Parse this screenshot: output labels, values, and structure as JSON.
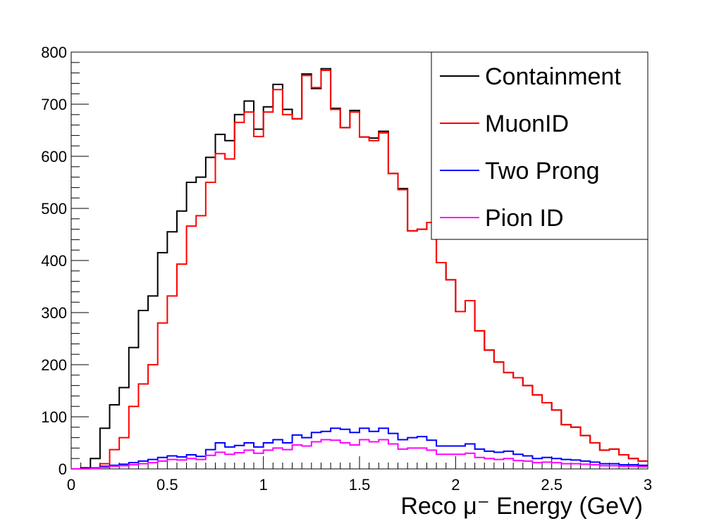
{
  "chart_data": {
    "type": "line",
    "title": "",
    "xlabel": "Reco μ⁻ Energy (GeV)",
    "ylabel": "",
    "xlim": [
      0,
      3
    ],
    "ylim": [
      0,
      800
    ],
    "grid": false,
    "legend_position": "top-right",
    "xticks": [
      "0",
      "0.5",
      "1",
      "1.5",
      "2",
      "2.5",
      "3"
    ],
    "xtick_values": [
      0,
      0.5,
      1,
      1.5,
      2,
      2.5,
      3
    ],
    "yticks": [
      "0",
      "100",
      "200",
      "300",
      "400",
      "500",
      "600",
      "700",
      "800"
    ],
    "ytick_values": [
      0,
      100,
      200,
      300,
      400,
      500,
      600,
      700,
      800
    ],
    "bin_edges_start": 0,
    "bin_width": 0.05,
    "series": [
      {
        "name": "Containment",
        "color": "#000000",
        "values": [
          0,
          2,
          20,
          78,
          123,
          156,
          233,
          304,
          332,
          415,
          455,
          495,
          550,
          560,
          598,
          642,
          630,
          680,
          706,
          652,
          695,
          738,
          690,
          672,
          758,
          730,
          768,
          692,
          655,
          688,
          637,
          635,
          648,
          567,
          538,
          457,
          460,
          473,
          396,
          363,
          302,
          323,
          265,
          228,
          205,
          185,
          175,
          160,
          142,
          127,
          113,
          85,
          80,
          64,
          50,
          36,
          38,
          27,
          20,
          15,
          5,
          2,
          1,
          1,
          0,
          0,
          0,
          0,
          0,
          0,
          0,
          0,
          0,
          0,
          0,
          0,
          0,
          0,
          0,
          0,
          0,
          0,
          0,
          0,
          0,
          0,
          0,
          0,
          0,
          0,
          0,
          0,
          0,
          0,
          0,
          0,
          0,
          0,
          0,
          0,
          0,
          0,
          0,
          0,
          0,
          0,
          0,
          0,
          0,
          0,
          0,
          0,
          0,
          0,
          0,
          0,
          0,
          0,
          0,
          0,
          0,
          0,
          0,
          0,
          0,
          0,
          0,
          0,
          0,
          0,
          0,
          0,
          0,
          0,
          0,
          0,
          0,
          0,
          0,
          0,
          0,
          0,
          0,
          0,
          0,
          0,
          0,
          0,
          0,
          0,
          0,
          0,
          0,
          0,
          0,
          0,
          0,
          0,
          0,
          0,
          0,
          0,
          0,
          0,
          0,
          0,
          0,
          0,
          0,
          0,
          0,
          0,
          0,
          0,
          0,
          0,
          0,
          0,
          0,
          0,
          0,
          0,
          0,
          0,
          0,
          0,
          0,
          0,
          0,
          0,
          0,
          0,
          0,
          0,
          0,
          0,
          0,
          0,
          0,
          0,
          0,
          0,
          0,
          0,
          0,
          0,
          0,
          0,
          0,
          0,
          0,
          0,
          0,
          0,
          0,
          0,
          0,
          0,
          0,
          0,
          0,
          0,
          0,
          0,
          0,
          0,
          0,
          0,
          0,
          0,
          0,
          0,
          0,
          0,
          0,
          0,
          0,
          0,
          0,
          0,
          0,
          0,
          0,
          0,
          0,
          0,
          0,
          0,
          0,
          0,
          0,
          0,
          0,
          0,
          0,
          0,
          0,
          0,
          0,
          0,
          0,
          0,
          0,
          0,
          0,
          0,
          0,
          0,
          0,
          0,
          0,
          0,
          0,
          0,
          0,
          0,
          0,
          0,
          0,
          0,
          0,
          0,
          0,
          0,
          0,
          0,
          0,
          0,
          0,
          0,
          0,
          0,
          0,
          0,
          0,
          0,
          0,
          0,
          0,
          0,
          0,
          0,
          0,
          0,
          0,
          0,
          0,
          0,
          0,
          0,
          0,
          0,
          0,
          0,
          0,
          0,
          0,
          0,
          0,
          0
        ]
      },
      {
        "name": "MuonID",
        "color": "#ff0000",
        "values": [
          0,
          0,
          2,
          10,
          37,
          60,
          120,
          163,
          200,
          280,
          332,
          393,
          466,
          486,
          550,
          605,
          595,
          665,
          685,
          638,
          685,
          728,
          680,
          672,
          755,
          732,
          765,
          690,
          655,
          685,
          637,
          630,
          645,
          567,
          536,
          457,
          460,
          473,
          396,
          363,
          302,
          323,
          265,
          228,
          205,
          185,
          175,
          160,
          142,
          127,
          113,
          85,
          80,
          64,
          50,
          36,
          38,
          27,
          20,
          15,
          5,
          2,
          1,
          1,
          0,
          0,
          0,
          0,
          0,
          0,
          0,
          0,
          0,
          0,
          0,
          0,
          0,
          0,
          0,
          0,
          0,
          0,
          0,
          0,
          0,
          0,
          0,
          0,
          0,
          0,
          0,
          0,
          0,
          0,
          0,
          0,
          0,
          0,
          0,
          0,
          0,
          0,
          0,
          0,
          0,
          0,
          0,
          0,
          0,
          0,
          0,
          0,
          0,
          0,
          0,
          0,
          0,
          0,
          0,
          0,
          0,
          0,
          0,
          0,
          0,
          0,
          0,
          0,
          0,
          0,
          0,
          0,
          0,
          0,
          0,
          0,
          0,
          0,
          0,
          0,
          0,
          0,
          0,
          0,
          0,
          0,
          0,
          0,
          0,
          0,
          0,
          0,
          0,
          0,
          0,
          0,
          0,
          0,
          0,
          0,
          0,
          0,
          0,
          0,
          0,
          0,
          0,
          0,
          0,
          0,
          0,
          0,
          0,
          0,
          0,
          0,
          0,
          0,
          0,
          0,
          0,
          0,
          0,
          0,
          0,
          0,
          0,
          0,
          0,
          0,
          0,
          0,
          0,
          0,
          0,
          0,
          0,
          0,
          0,
          0,
          0,
          0,
          0,
          0,
          0,
          0,
          0,
          0,
          0,
          0,
          0,
          0,
          0,
          0,
          0,
          0,
          0,
          0,
          0,
          0,
          0,
          0,
          0,
          0,
          0,
          0,
          0,
          0,
          0,
          0,
          0,
          0,
          0,
          0,
          0,
          0,
          0,
          0,
          0,
          0,
          0,
          0,
          0,
          0,
          0,
          0,
          0,
          0,
          0,
          0,
          0,
          0,
          0,
          0,
          0,
          0,
          0,
          0,
          0,
          0,
          0,
          0,
          0,
          0,
          0,
          0,
          0,
          0,
          0,
          0,
          0,
          0,
          0,
          0,
          0,
          0,
          0,
          0,
          0,
          0,
          0,
          0,
          0,
          0,
          0,
          0,
          0,
          0,
          0,
          0,
          0,
          0,
          0,
          0,
          0,
          0,
          0,
          0,
          0,
          0,
          0,
          0,
          0,
          0,
          0,
          0,
          0,
          0,
          0,
          0
        ]
      },
      {
        "name": "Two Prong",
        "color": "#0000ff",
        "values": [
          0,
          0,
          2,
          5,
          7,
          9,
          12,
          15,
          18,
          22,
          25,
          23,
          27,
          24,
          37,
          50,
          42,
          45,
          50,
          42,
          50,
          56,
          50,
          65,
          60,
          70,
          72,
          78,
          76,
          70,
          78,
          72,
          78,
          68,
          56,
          60,
          62,
          55,
          44,
          44,
          44,
          48,
          38,
          34,
          32,
          34,
          28,
          25,
          20,
          22,
          20,
          18,
          17,
          15,
          13,
          10,
          10,
          8,
          8,
          7,
          5,
          5,
          3,
          3,
          2,
          2,
          1,
          1,
          1,
          0,
          0,
          0,
          0,
          0,
          0,
          0,
          0,
          0,
          0,
          0,
          0,
          0,
          0,
          0,
          0,
          0,
          0,
          0,
          0,
          0,
          0,
          0,
          0,
          0,
          0,
          0,
          0,
          0,
          0,
          0,
          0,
          0,
          0,
          0,
          0,
          0,
          0,
          0,
          0,
          0,
          0,
          0,
          0,
          0,
          0,
          0,
          0,
          0,
          0,
          0,
          0,
          0,
          0,
          0,
          0,
          0,
          0,
          0,
          0,
          0,
          0,
          0,
          0,
          0,
          0,
          0,
          0,
          0,
          0,
          0,
          0,
          0,
          0,
          0,
          0,
          0,
          0,
          0,
          0,
          0,
          0,
          0,
          0,
          0,
          0,
          0,
          0,
          0,
          0,
          0,
          0,
          0,
          0,
          0,
          0,
          0,
          0,
          0,
          0,
          0,
          0,
          0,
          0,
          0,
          0,
          0,
          0,
          0,
          0,
          0,
          0,
          0,
          0,
          0,
          0,
          0,
          0,
          0,
          0,
          0,
          0,
          0,
          0,
          0,
          0,
          0,
          0,
          0,
          0,
          0,
          0,
          0,
          0,
          0,
          0,
          0,
          0,
          0,
          0,
          0,
          0,
          0,
          0,
          0,
          0,
          0,
          0,
          0,
          0,
          0,
          0,
          0,
          0,
          0,
          0,
          0,
          0,
          0,
          0,
          0,
          0,
          0,
          0,
          0,
          0,
          0,
          0,
          0,
          0,
          0,
          0,
          0,
          0,
          0,
          0,
          0,
          0,
          0,
          0,
          0,
          0,
          0,
          0,
          0,
          0,
          0,
          0,
          0,
          0,
          0,
          0,
          0,
          0,
          0,
          0,
          0,
          0,
          0,
          0,
          0,
          0,
          0,
          0,
          0,
          0,
          0,
          0,
          0,
          0,
          0,
          0,
          0,
          0,
          0,
          0,
          0,
          0,
          0,
          0,
          0,
          0,
          0,
          0,
          0,
          0,
          0,
          0,
          0,
          0,
          0,
          0,
          0,
          0,
          0,
          0,
          0,
          0,
          0,
          0,
          0,
          0,
          0,
          0,
          0,
          0
        ]
      },
      {
        "name": "Pion ID",
        "color": "#ff00ff",
        "values": [
          0,
          0,
          1,
          3,
          5,
          6,
          8,
          10,
          12,
          15,
          18,
          17,
          20,
          18,
          26,
          32,
          28,
          31,
          36,
          30,
          36,
          40,
          37,
          46,
          44,
          52,
          56,
          55,
          50,
          46,
          56,
          52,
          56,
          48,
          38,
          40,
          40,
          36,
          28,
          28,
          28,
          30,
          22,
          20,
          18,
          20,
          16,
          15,
          12,
          13,
          12,
          10,
          10,
          9,
          8,
          6,
          6,
          5,
          5,
          4,
          3,
          3,
          2,
          2,
          1,
          1,
          1,
          1,
          1,
          0,
          0,
          0,
          0,
          0,
          0,
          0,
          0,
          0,
          0,
          0,
          0,
          0,
          0,
          0,
          0,
          0,
          0,
          0,
          0,
          0,
          0,
          0,
          0,
          0,
          0,
          0,
          0,
          0,
          0,
          0,
          0,
          0,
          0,
          0,
          0,
          0,
          0,
          0,
          0,
          0,
          0,
          0,
          0,
          0,
          0,
          0,
          0,
          0,
          0,
          0,
          0,
          0,
          0,
          0,
          0,
          0,
          0,
          0,
          0,
          0,
          0,
          0,
          0,
          0,
          0,
          0,
          0,
          0,
          0,
          0,
          0,
          0,
          0,
          0,
          0,
          0,
          0,
          0,
          0,
          0,
          0,
          0,
          0,
          0,
          0,
          0,
          0,
          0,
          0,
          0,
          0,
          0,
          0,
          0,
          0,
          0,
          0,
          0,
          0,
          0,
          0,
          0,
          0,
          0,
          0,
          0,
          0,
          0,
          0,
          0,
          0,
          0,
          0,
          0,
          0,
          0,
          0,
          0,
          0,
          0,
          0,
          0,
          0,
          0,
          0,
          0,
          0,
          0,
          0,
          0,
          0,
          0,
          0,
          0,
          0,
          0,
          0,
          0,
          0,
          0,
          0,
          0,
          0,
          0,
          0,
          0,
          0,
          0,
          0,
          0,
          0,
          0,
          0,
          0,
          0,
          0,
          0,
          0,
          0,
          0,
          0,
          0,
          0,
          0,
          0,
          0,
          0,
          0,
          0,
          0,
          0,
          0,
          0,
          0,
          0,
          0,
          0,
          0,
          0,
          0,
          0,
          0,
          0,
          0,
          0,
          0,
          0,
          0,
          0,
          0,
          0,
          0,
          0,
          0,
          0,
          0,
          0,
          0,
          0,
          0,
          0,
          0,
          0,
          0,
          0,
          0,
          0,
          0,
          0,
          0,
          0,
          0,
          0,
          0,
          0,
          0,
          0,
          0,
          0,
          0,
          0,
          0,
          0,
          0,
          0,
          0,
          0,
          0,
          0,
          0,
          0,
          0,
          0,
          0,
          0,
          0,
          0,
          0,
          0,
          0,
          0,
          0,
          0,
          0,
          0,
          0,
          0,
          0,
          0
        ]
      }
    ]
  }
}
